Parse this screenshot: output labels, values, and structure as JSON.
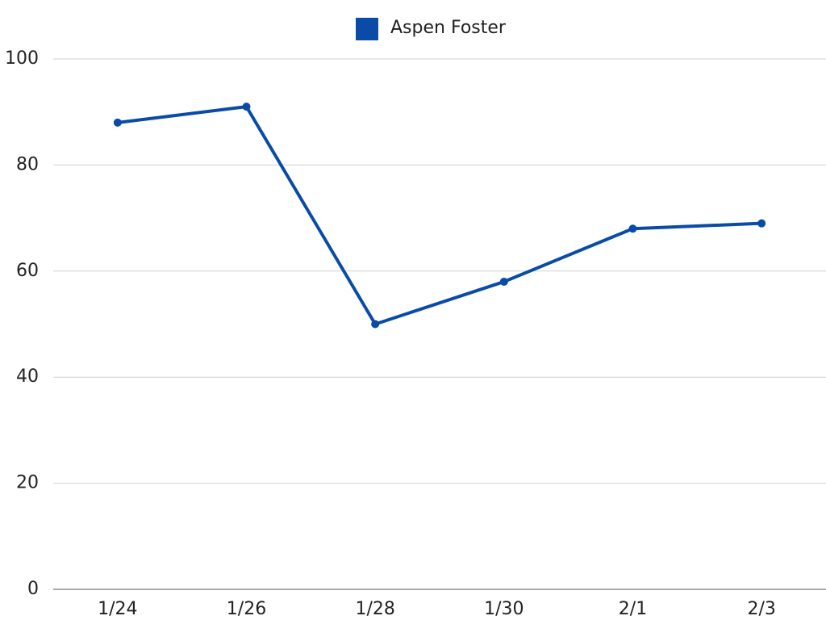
{
  "chart_data": {
    "type": "line",
    "categories": [
      "1/24",
      "1/26",
      "1/28",
      "1/30",
      "2/1",
      "2/3"
    ],
    "series": [
      {
        "name": "Aspen Foster",
        "color": "#0a4ba8",
        "values": [
          88,
          91,
          50,
          58,
          68,
          69
        ]
      }
    ],
    "ylim": [
      0,
      100
    ],
    "yticks": [
      0,
      20,
      40,
      60,
      80,
      100
    ],
    "grid": true,
    "legend": "top"
  }
}
